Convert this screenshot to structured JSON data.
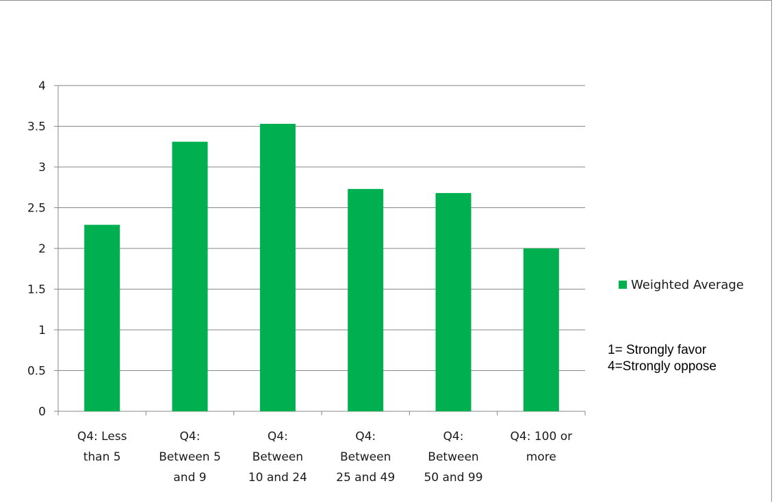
{
  "chart_data": {
    "type": "bar",
    "categories": [
      [
        "Q4: Less",
        "than 5"
      ],
      [
        "Q4:",
        "Between 5",
        "and 9"
      ],
      [
        "Q4:",
        "Between",
        "10 and 24"
      ],
      [
        "Q4:",
        "Between",
        "25 and 49"
      ],
      [
        "Q4:",
        "Between",
        "50 and 99"
      ],
      [
        "Q4: 100 or",
        "more"
      ]
    ],
    "series": [
      {
        "name": "Weighted Average",
        "values": [
          2.29,
          3.31,
          3.53,
          2.73,
          2.68,
          2.0
        ],
        "color": "#00b050"
      }
    ],
    "ylim": [
      0,
      4
    ],
    "yticks": [
      "0",
      "0.5",
      "1",
      "1.5",
      "2",
      "2.5",
      "3",
      "3.5",
      "4"
    ],
    "grid": true,
    "legend_position": "right",
    "axis_color": "#868686",
    "grid_color": "#868686"
  },
  "notes": {
    "line1": "1= Strongly favor",
    "line2": "4=Strongly oppose"
  }
}
